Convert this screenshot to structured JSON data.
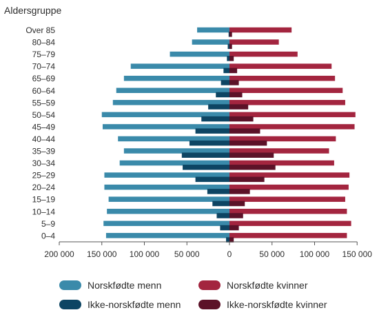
{
  "chart_data": {
    "type": "bar",
    "orientation": "horizontal",
    "title": "Aldersgruppe",
    "categories": [
      "Over 85",
      "80–84",
      "75–79",
      "70–74",
      "65–69",
      "60–64",
      "55–59",
      "50–54",
      "45–49",
      "40–44",
      "35–39",
      "30–34",
      "25–29",
      "20–24",
      "15–19",
      "10–14",
      "5–9",
      "0–4"
    ],
    "xlim": [
      -200000,
      150000
    ],
    "x_ticks": [
      -200000,
      -150000,
      -100000,
      -50000,
      0,
      50000,
      100000,
      150000
    ],
    "x_tick_labels": [
      "200 000",
      "150 000",
      "100 000",
      "50 000",
      "0",
      "50 000",
      "100 000",
      "150 000"
    ],
    "grid": false,
    "legend_position": "bottom",
    "series": [
      {
        "name": "Norskfødte menn",
        "color": "#3a8aaa",
        "values": [
          -38000,
          -44000,
          -70000,
          -116000,
          -124000,
          -133000,
          -137000,
          -150000,
          -149000,
          -131000,
          -124000,
          -129000,
          -147000,
          -147000,
          -142000,
          -144000,
          -148000,
          -145000
        ]
      },
      {
        "name": "Ikke-norskfødte menn",
        "color": "#0d4563",
        "values": [
          -1000,
          -2000,
          -3000,
          -7000,
          -10000,
          -16000,
          -25000,
          -33000,
          -40000,
          -47000,
          -56000,
          -55000,
          -40000,
          -26000,
          -20000,
          -15000,
          -11000,
          -4000
        ]
      },
      {
        "name": "Norskfødte kvinner",
        "color": "#a3253f",
        "values": [
          73000,
          58000,
          80000,
          120000,
          124000,
          133000,
          136000,
          148000,
          147000,
          125000,
          117000,
          123000,
          141000,
          140000,
          136000,
          138000,
          143000,
          138000
        ]
      },
      {
        "name": "Ikke-norskfødte kvinner",
        "color": "#5c1228",
        "values": [
          3000,
          3000,
          5000,
          9000,
          11000,
          15000,
          22000,
          28000,
          36000,
          44000,
          52000,
          54000,
          41000,
          24000,
          18000,
          16000,
          11000,
          5000
        ]
      }
    ]
  }
}
